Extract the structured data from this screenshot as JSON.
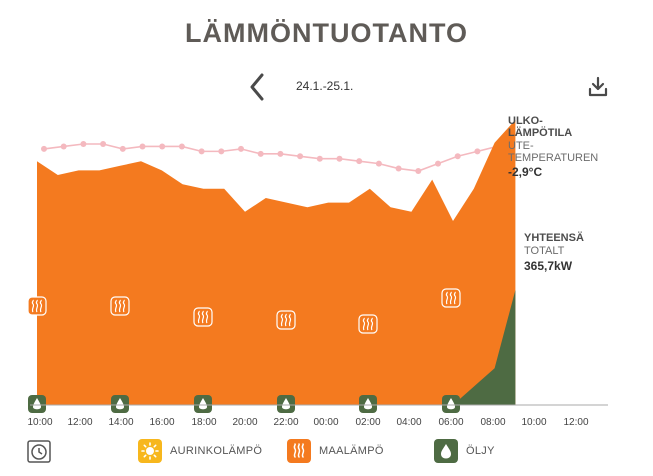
{
  "header": {
    "title": "LÄMMÖNTUOTANTO",
    "date_range": "24.1.-25.1."
  },
  "icons": {
    "prev": "chevron-left-icon",
    "download": "download-icon",
    "clock": "clock-icon"
  },
  "outdoor": {
    "label_fi_1": "ULKO-",
    "label_fi_2": "LÄMPÖTILA",
    "label_sv_1": "UTE-",
    "label_sv_2": "TEMPERATUREN",
    "value": "-2,9°C"
  },
  "total": {
    "label_fi": "YHTEENSÄ",
    "label_sv": "TOTALT",
    "value": "365,7kW"
  },
  "legend": {
    "solar": "AURINKOLÄMPÖ",
    "ground": "MAALÄMPÖ",
    "oil": "ÖLJY"
  },
  "colors": {
    "ground": "#f47a1f",
    "oil": "#4e6b43",
    "temp": "#f4b9bf",
    "solar": "#f7b71d",
    "text": "#5f5b57"
  },
  "chart_data": {
    "type": "area",
    "x_ticks": [
      "10:00",
      "12:00",
      "14:00",
      "16:00",
      "18:00",
      "20:00",
      "22:00",
      "00:00",
      "02:00",
      "04:00",
      "06:00",
      "08:00",
      "10:00",
      "12:00"
    ],
    "series": [
      {
        "name": "MAALÄMPÖ",
        "x": [
          0,
          1,
          2,
          3,
          4,
          5,
          6,
          7,
          8,
          9,
          10,
          11,
          12,
          13,
          14,
          15,
          16,
          17,
          18,
          19,
          20,
          21,
          22,
          23
        ],
        "values": [
          53,
          50,
          51,
          51,
          52,
          53,
          51,
          48,
          47,
          47,
          42,
          45,
          44,
          43,
          44,
          44,
          47,
          43,
          42,
          49,
          40,
          47,
          57,
          62
        ]
      },
      {
        "name": "ÖLJY",
        "x": [
          20,
          21,
          22,
          23
        ],
        "values": [
          0,
          4,
          8,
          25
        ]
      }
    ],
    "temperature": {
      "label": "ULKO-LÄMPÖTILA",
      "values": [
        -1.8,
        -1.7,
        -1.6,
        -1.6,
        -1.8,
        -1.7,
        -1.7,
        -1.7,
        -1.9,
        -1.9,
        -1.8,
        -2.0,
        -2.0,
        -2.1,
        -2.2,
        -2.2,
        -2.3,
        -2.4,
        -2.6,
        -2.7,
        -2.4,
        -2.1,
        -1.9,
        -1.7
      ]
    }
  }
}
